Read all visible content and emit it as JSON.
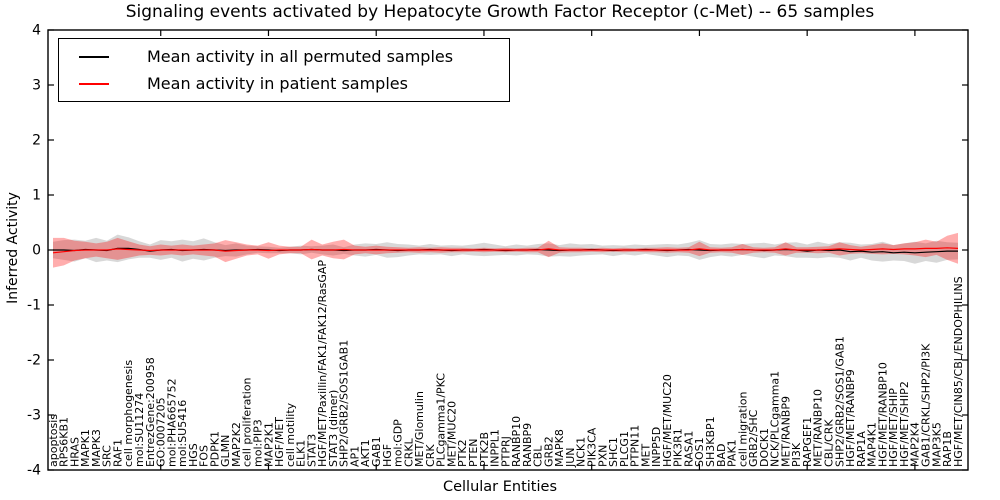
{
  "title": "Signaling events activated by Hepatocyte Growth Factor Receptor (c-Met) -- 65 samples",
  "xlabel": "Cellular Entities",
  "ylabel": "Inferred Activity",
  "legend": [
    {
      "label": "Mean activity in all permuted samples",
      "color": "#000000"
    },
    {
      "label": "Mean activity in patient samples",
      "color": "#ff0000"
    }
  ],
  "colors": {
    "permuted_line": "#000000",
    "patient_line": "#ff0000",
    "permuted_band": "#999999",
    "patient_band": "#ff0000",
    "frame": "#000000"
  },
  "chart_data": {
    "type": "line",
    "title": "Signaling events activated by Hepatocyte Growth Factor Receptor (c-Met) -- 65 samples",
    "xlabel": "Cellular Entities",
    "ylabel": "Inferred Activity",
    "ylim": [
      -4,
      4
    ],
    "yticks": [
      4,
      3,
      2,
      1,
      0,
      -1,
      -2,
      -3,
      -4
    ],
    "grid": false,
    "legend_position": "upper left",
    "categories": [
      "apoptosis",
      "RPS6KB1",
      "HRAS",
      "MAPK1",
      "MAPK3",
      "SRC",
      "RAF1",
      "cell morphogenesis",
      "mol:SU11274",
      "EntrezGene:200958",
      "GO:0007205",
      "mol:PHA665752",
      "mol:SU5416",
      "HGS",
      "FOS",
      "PDPK1",
      "GLMN",
      "MAP2K2",
      "cell proliferation",
      "mol:PIP3",
      "MAP2K1",
      "HGF/MET",
      "cell motility",
      "ELK1",
      "STAT3",
      "HGF/MET/Paxillin/FAK1/FAK12/RasGAP",
      "STAT3 (dimer)",
      "SHP2/GRB2/SOS1GAB1",
      "AP1",
      "AKT1",
      "GAB1",
      "HGF",
      "mol:GDP",
      "CRKL",
      "MET/Glomulin",
      "CRK",
      "PLCgamma1/PKC",
      "MET/MUC20",
      "PTK2",
      "PTEN",
      "PTK2B",
      "INPPL1",
      "PTPRJ",
      "RANBP10",
      "RANBP9",
      "CBL",
      "GRB2",
      "MAPK8",
      "JUN",
      "NCK1",
      "PIK3CA",
      "PXN",
      "SHC1",
      "PLCG1",
      "PTPN11",
      "MET",
      "INPP5D",
      "HGF/MET/MUC20",
      "PIK3R1",
      "RASA1",
      "SOS1",
      "SH3KBP1",
      "BAD",
      "PAK1",
      "cell migration",
      "GRB2/SHC",
      "DOCK1",
      "NCK/PLCgamma1",
      "MET/RANBP9",
      "PI3K",
      "RAPGEF1",
      "MET/RANBP10",
      "CBL/CRK",
      "SHP2/GRB2/SOS1/GAB1",
      "HGF/MET/RANBP9",
      "RAP1A",
      "MAP4K1",
      "HGF/MET/RANBP10",
      "HGF/MET/SHIP",
      "HGF/MET/SHIP2",
      "MAP2K4",
      "GAB1/CRKL/SHP2/PI3K",
      "MAP3K5",
      "RAP1B",
      "HGF/MET/CIN85/CBL/ENDOPHILINS"
    ],
    "series": [
      {
        "name": "Mean activity in all permuted samples",
        "color": "#000000",
        "values": [
          0,
          0,
          -0.01,
          0.01,
          0,
          -0.01,
          0.03,
          0.03,
          0.01,
          -0.02,
          0,
          0.01,
          -0.01,
          0,
          0.01,
          0,
          -0.01,
          0,
          0,
          0.01,
          0,
          -0.01,
          0,
          0,
          0.01,
          0,
          0,
          -0.01,
          0,
          0,
          0.01,
          0,
          -0.01,
          0,
          0,
          0.01,
          0,
          -0.01,
          0,
          0,
          0.01,
          0,
          -0.01,
          0,
          0,
          0.01,
          0,
          -0.01,
          0,
          0,
          0.01,
          0,
          -0.01,
          0,
          0,
          0.01,
          0,
          -0.01,
          0,
          0.01,
          0,
          -0.01,
          0,
          0,
          0.01,
          0,
          -0.01,
          0,
          0.01,
          0,
          -0.02,
          0,
          -0.01,
          0,
          -0.03,
          -0.02,
          -0.04,
          -0.03,
          -0.05,
          -0.04,
          -0.05,
          -0.04,
          -0.03,
          -0.02,
          -0.02
        ]
      },
      {
        "name": "Mean activity in patient samples",
        "color": "#ff0000",
        "values": [
          -0.05,
          -0.03,
          -0.01,
          0,
          0,
          0,
          0.02,
          0.01,
          0,
          -0.01,
          0,
          0,
          0,
          0,
          0,
          0,
          -0.02,
          -0.01,
          0,
          0,
          -0.01,
          0,
          0,
          0,
          0.01,
          0,
          0,
          0.01,
          0,
          0,
          0,
          0,
          0,
          0,
          0,
          0,
          0,
          0,
          0,
          0,
          0,
          0,
          0,
          0,
          0,
          0,
          0.02,
          0,
          0,
          0,
          0,
          0,
          0,
          0,
          0,
          0,
          0,
          0,
          0,
          0,
          0.02,
          0,
          0,
          0,
          0.01,
          0,
          0,
          0,
          0.02,
          0,
          0,
          0,
          0.01,
          0.02,
          0.01,
          0,
          0.01,
          0.02,
          0.01,
          0.02,
          0.02,
          0.03,
          0.03,
          0.04,
          0.03
        ]
      }
    ],
    "bands": [
      {
        "name": "permuted-activity-range",
        "color": "#999999",
        "opacity": 0.38,
        "center_series": 0,
        "half_widths": [
          0.15,
          0.18,
          0.2,
          0.16,
          0.22,
          0.18,
          0.25,
          0.2,
          0.15,
          0.12,
          0.18,
          0.15,
          0.2,
          0.16,
          0.2,
          0.14,
          0.1,
          0.12,
          0.08,
          0.06,
          0.06,
          0.05,
          0.06,
          0.08,
          0.06,
          0.08,
          0.1,
          0.06,
          0.1,
          0.12,
          0.1,
          0.14,
          0.12,
          0.1,
          0.08,
          0.1,
          0.08,
          0.1,
          0.08,
          0.1,
          0.12,
          0.1,
          0.08,
          0.1,
          0.08,
          0.1,
          0.12,
          0.1,
          0.12,
          0.1,
          0.1,
          0.08,
          0.1,
          0.08,
          0.1,
          0.08,
          0.1,
          0.12,
          0.1,
          0.12,
          0.18,
          0.12,
          0.1,
          0.12,
          0.1,
          0.12,
          0.14,
          0.1,
          0.12,
          0.14,
          0.12,
          0.15,
          0.12,
          0.14,
          0.16,
          0.12,
          0.15,
          0.18,
          0.14,
          0.16,
          0.2,
          0.16,
          0.2,
          0.16,
          0.15
        ]
      },
      {
        "name": "patient-activity-range",
        "color": "#ff0000",
        "opacity": 0.32,
        "center_series": 1,
        "half_widths": [
          0.27,
          0.25,
          0.18,
          0.15,
          0.12,
          0.15,
          0.2,
          0.15,
          0.1,
          0.08,
          0.1,
          0.08,
          0.1,
          0.08,
          0.1,
          0.12,
          0.2,
          0.15,
          0.1,
          0.08,
          0.15,
          0.08,
          0.06,
          0.06,
          0.18,
          0.1,
          0.15,
          0.18,
          0.08,
          0.06,
          0.08,
          0.06,
          0.05,
          0.04,
          0.05,
          0.04,
          0.05,
          0.04,
          0.04,
          0.03,
          0.04,
          0.03,
          0.04,
          0.03,
          0.04,
          0.04,
          0.15,
          0.05,
          0.04,
          0.04,
          0.03,
          0.04,
          0.03,
          0.04,
          0.03,
          0.04,
          0.04,
          0.05,
          0.04,
          0.05,
          0.13,
          0.05,
          0.04,
          0.05,
          0.1,
          0.05,
          0.04,
          0.05,
          0.12,
          0.05,
          0.05,
          0.06,
          0.06,
          0.12,
          0.08,
          0.06,
          0.08,
          0.1,
          0.08,
          0.1,
          0.12,
          0.16,
          0.12,
          0.22,
          0.28
        ]
      }
    ]
  }
}
